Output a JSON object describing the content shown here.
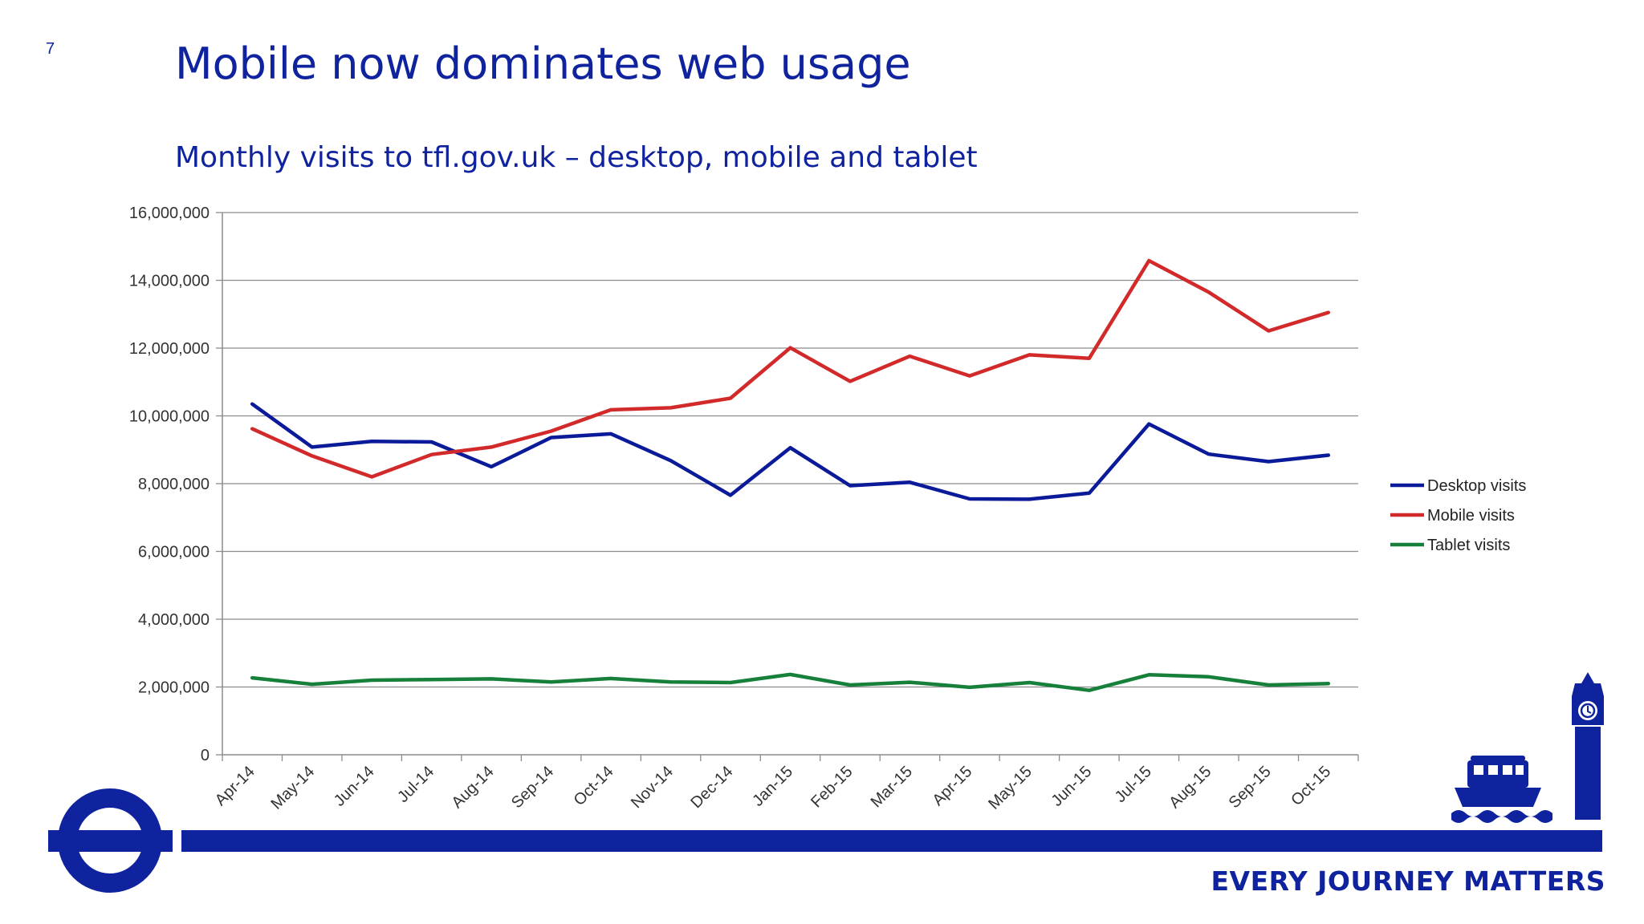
{
  "slide": {
    "number": "7",
    "title": "Mobile now dominates web usage",
    "subtitle": "Monthly visits to tfl.gov.uk – desktop, mobile and tablet",
    "tagline": "EVERY JOURNEY MATTERS",
    "brand_color": "#10239e"
  },
  "chart_data": {
    "type": "line",
    "categories": [
      "Apr-14",
      "May-14",
      "Jun-14",
      "Jul-14",
      "Aug-14",
      "Sep-14",
      "Oct-14",
      "Nov-14",
      "Dec-14",
      "Jan-15",
      "Feb-15",
      "Mar-15",
      "Apr-15",
      "May-15",
      "Jun-15",
      "Jul-15",
      "Aug-15",
      "Sep-15",
      "Oct-15"
    ],
    "ylim": [
      0,
      16000000
    ],
    "yticks": [
      0,
      2000000,
      4000000,
      6000000,
      8000000,
      10000000,
      12000000,
      14000000,
      16000000
    ],
    "ytick_labels": [
      "0",
      "2,000,000",
      "4,000,000",
      "6,000,000",
      "8,000,000",
      "10,000,000",
      "12,000,000",
      "14,000,000",
      "16,000,000"
    ],
    "grid": true,
    "legend_position": "right",
    "series": [
      {
        "name": "Desktop visits",
        "color": "#0a1a99",
        "values": [
          10350000,
          9080000,
          9250000,
          9230000,
          8500000,
          9360000,
          9470000,
          8680000,
          7660000,
          9060000,
          7940000,
          8040000,
          7550000,
          7540000,
          7720000,
          9760000,
          8870000,
          8650000,
          8840000
        ]
      },
      {
        "name": "Mobile visits",
        "color": "#d22a2a",
        "values": [
          9620000,
          8820000,
          8200000,
          8860000,
          9080000,
          9550000,
          10180000,
          10240000,
          10520000,
          12010000,
          11020000,
          11760000,
          11180000,
          11800000,
          11700000,
          14580000,
          13650000,
          12510000,
          13050000
        ]
      },
      {
        "name": "Tablet visits",
        "color": "#16803a",
        "values": [
          2270000,
          2080000,
          2200000,
          2220000,
          2240000,
          2150000,
          2250000,
          2150000,
          2130000,
          2370000,
          2060000,
          2140000,
          1990000,
          2130000,
          1900000,
          2360000,
          2300000,
          2060000,
          2100000
        ]
      }
    ]
  }
}
